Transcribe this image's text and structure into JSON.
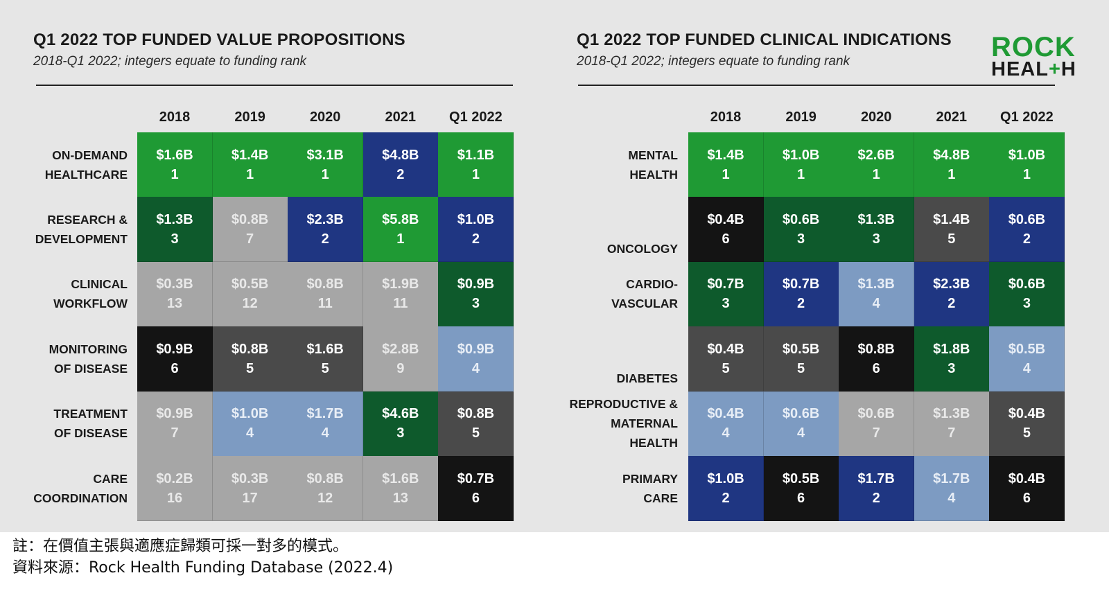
{
  "colors": {
    "green": "#1f9a34",
    "darkgreen": "#0e5a2c",
    "navy": "#1f3682",
    "lightblue": "#7d9bc2",
    "lightgray": "#a6a6a6",
    "darkgray": "#4a4a4a",
    "black": "#141414"
  },
  "logo": {
    "line1": "ROCK",
    "line2_a": "HEAL",
    "line2_plus": "+",
    "line2_b": "H"
  },
  "chart_data": [
    {
      "type": "table",
      "title": "Q1 2022 TOP FUNDED VALUE PROPOSITIONS",
      "subtitle": "2018-Q1 2022; integers equate to funding rank",
      "columns": [
        "2018",
        "2019",
        "2020",
        "2021",
        "Q1 2022"
      ],
      "rows": [
        {
          "label": [
            "ON-DEMAND",
            "HEALTHCARE"
          ],
          "cells": [
            {
              "value": "$1.6B",
              "rank": "1",
              "color": "green"
            },
            {
              "value": "$1.4B",
              "rank": "1",
              "color": "green"
            },
            {
              "value": "$3.1B",
              "rank": "1",
              "color": "green"
            },
            {
              "value": "$4.8B",
              "rank": "2",
              "color": "navy"
            },
            {
              "value": "$1.1B",
              "rank": "1",
              "color": "green"
            }
          ]
        },
        {
          "label": [
            "RESEARCH &",
            "DEVELOPMENT"
          ],
          "cells": [
            {
              "value": "$1.3B",
              "rank": "3",
              "color": "darkgreen"
            },
            {
              "value": "$0.8B",
              "rank": "7",
              "color": "lightgray"
            },
            {
              "value": "$2.3B",
              "rank": "2",
              "color": "navy"
            },
            {
              "value": "$5.8B",
              "rank": "1",
              "color": "green"
            },
            {
              "value": "$1.0B",
              "rank": "2",
              "color": "navy"
            }
          ]
        },
        {
          "label": [
            "CLINICAL",
            "WORKFLOW"
          ],
          "cells": [
            {
              "value": "$0.3B",
              "rank": "13",
              "color": "lightgray"
            },
            {
              "value": "$0.5B",
              "rank": "12",
              "color": "lightgray"
            },
            {
              "value": "$0.8B",
              "rank": "11",
              "color": "lightgray"
            },
            {
              "value": "$1.9B",
              "rank": "11",
              "color": "lightgray"
            },
            {
              "value": "$0.9B",
              "rank": "3",
              "color": "darkgreen"
            }
          ]
        },
        {
          "label": [
            "MONITORING",
            "OF DISEASE"
          ],
          "cells": [
            {
              "value": "$0.9B",
              "rank": "6",
              "color": "black"
            },
            {
              "value": "$0.8B",
              "rank": "5",
              "color": "darkgray"
            },
            {
              "value": "$1.6B",
              "rank": "5",
              "color": "darkgray"
            },
            {
              "value": "$2.8B",
              "rank": "9",
              "color": "lightgray"
            },
            {
              "value": "$0.9B",
              "rank": "4",
              "color": "lightblue"
            }
          ]
        },
        {
          "label": [
            "TREATMENT",
            "OF DISEASE"
          ],
          "cells": [
            {
              "value": "$0.9B",
              "rank": "7",
              "color": "lightgray"
            },
            {
              "value": "$1.0B",
              "rank": "4",
              "color": "lightblue"
            },
            {
              "value": "$1.7B",
              "rank": "4",
              "color": "lightblue"
            },
            {
              "value": "$4.6B",
              "rank": "3",
              "color": "darkgreen"
            },
            {
              "value": "$0.8B",
              "rank": "5",
              "color": "darkgray"
            }
          ]
        },
        {
          "label": [
            "CARE",
            "COORDINATION"
          ],
          "cells": [
            {
              "value": "$0.2B",
              "rank": "16",
              "color": "lightgray"
            },
            {
              "value": "$0.3B",
              "rank": "17",
              "color": "lightgray"
            },
            {
              "value": "$0.8B",
              "rank": "12",
              "color": "lightgray"
            },
            {
              "value": "$1.6B",
              "rank": "13",
              "color": "lightgray"
            },
            {
              "value": "$0.7B",
              "rank": "6",
              "color": "black"
            }
          ]
        }
      ]
    },
    {
      "type": "table",
      "title": "Q1 2022 TOP FUNDED CLINICAL INDICATIONS",
      "subtitle": "2018-Q1 2022; integers equate to funding rank",
      "columns": [
        "2018",
        "2019",
        "2020",
        "2021",
        "Q1 2022"
      ],
      "rows": [
        {
          "label": [
            "MENTAL",
            "HEALTH"
          ],
          "cells": [
            {
              "value": "$1.4B",
              "rank": "1",
              "color": "green"
            },
            {
              "value": "$1.0B",
              "rank": "1",
              "color": "green"
            },
            {
              "value": "$2.6B",
              "rank": "1",
              "color": "green"
            },
            {
              "value": "$4.8B",
              "rank": "1",
              "color": "green"
            },
            {
              "value": "$1.0B",
              "rank": "1",
              "color": "green"
            }
          ]
        },
        {
          "label": [
            "ONCOLOGY"
          ],
          "cells": [
            {
              "value": "$0.4B",
              "rank": "6",
              "color": "black"
            },
            {
              "value": "$0.6B",
              "rank": "3",
              "color": "darkgreen"
            },
            {
              "value": "$1.3B",
              "rank": "3",
              "color": "darkgreen"
            },
            {
              "value": "$1.4B",
              "rank": "5",
              "color": "darkgray"
            },
            {
              "value": "$0.6B",
              "rank": "2",
              "color": "navy"
            }
          ]
        },
        {
          "label": [
            "CARDIO-",
            "VASCULAR"
          ],
          "cells": [
            {
              "value": "$0.7B",
              "rank": "3",
              "color": "darkgreen"
            },
            {
              "value": "$0.7B",
              "rank": "2",
              "color": "navy"
            },
            {
              "value": "$1.3B",
              "rank": "4",
              "color": "lightblue"
            },
            {
              "value": "$2.3B",
              "rank": "2",
              "color": "navy"
            },
            {
              "value": "$0.6B",
              "rank": "3",
              "color": "darkgreen"
            }
          ]
        },
        {
          "label": [
            "DIABETES"
          ],
          "cells": [
            {
              "value": "$0.4B",
              "rank": "5",
              "color": "darkgray"
            },
            {
              "value": "$0.5B",
              "rank": "5",
              "color": "darkgray"
            },
            {
              "value": "$0.8B",
              "rank": "6",
              "color": "black"
            },
            {
              "value": "$1.8B",
              "rank": "3",
              "color": "darkgreen"
            },
            {
              "value": "$0.5B",
              "rank": "4",
              "color": "lightblue"
            }
          ]
        },
        {
          "label": [
            "REPRODUCTIVE &",
            "MATERNAL",
            "HEALTH"
          ],
          "cells": [
            {
              "value": "$0.4B",
              "rank": "4",
              "color": "lightblue"
            },
            {
              "value": "$0.6B",
              "rank": "4",
              "color": "lightblue"
            },
            {
              "value": "$0.6B",
              "rank": "7",
              "color": "lightgray"
            },
            {
              "value": "$1.3B",
              "rank": "7",
              "color": "lightgray"
            },
            {
              "value": "$0.4B",
              "rank": "5",
              "color": "darkgray"
            }
          ]
        },
        {
          "label": [
            "PRIMARY",
            "CARE"
          ],
          "cells": [
            {
              "value": "$1.0B",
              "rank": "2",
              "color": "navy"
            },
            {
              "value": "$0.5B",
              "rank": "6",
              "color": "black"
            },
            {
              "value": "$1.7B",
              "rank": "2",
              "color": "navy"
            },
            {
              "value": "$1.7B",
              "rank": "4",
              "color": "lightblue"
            },
            {
              "value": "$0.4B",
              "rank": "6",
              "color": "black"
            }
          ]
        }
      ]
    }
  ],
  "note": {
    "line1": "註：在價值主張與適應症歸類可採一對多的模式。",
    "line2": "資料來源：Rock Health Funding Database (2022.4)"
  }
}
